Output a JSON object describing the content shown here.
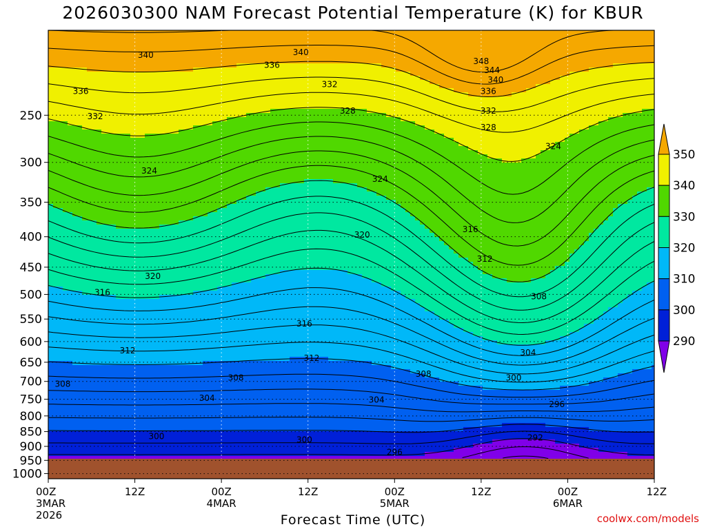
{
  "chart_data": {
    "type": "contour",
    "title": "2026030300 NAM Forecast Potential Temperature (K) for KBUR",
    "xlabel": "Forecast Time (UTC)",
    "ylabel": "",
    "x_ticks": [
      {
        "label": "00Z",
        "sub": "3MAR",
        "sub2": "2026",
        "hour": 0
      },
      {
        "label": "12Z",
        "sub": "",
        "sub2": "",
        "hour": 12
      },
      {
        "label": "00Z",
        "sub": "4MAR",
        "sub2": "",
        "hour": 24
      },
      {
        "label": "12Z",
        "sub": "",
        "sub2": "",
        "hour": 36
      },
      {
        "label": "00Z",
        "sub": "5MAR",
        "sub2": "",
        "hour": 48
      },
      {
        "label": "12Z",
        "sub": "",
        "sub2": "",
        "hour": 60
      },
      {
        "label": "00Z",
        "sub": "6MAR",
        "sub2": "",
        "hour": 72
      },
      {
        "label": "12Z",
        "sub": "",
        "sub2": "",
        "hour": 84
      }
    ],
    "xlim": [
      0,
      84
    ],
    "y_ticks": [
      250,
      300,
      350,
      400,
      450,
      500,
      550,
      600,
      650,
      700,
      750,
      800,
      850,
      900,
      950,
      1000
    ],
    "ylim": [
      1020,
      180
    ],
    "y_scale": "log",
    "grid": true,
    "colorbar": {
      "labels": [
        350,
        340,
        330,
        320,
        310,
        300,
        290
      ],
      "colors": [
        "#f5a800",
        "#f0f000",
        "#50d800",
        "#00e8a0",
        "#00b8f8",
        "#0060f0",
        "#0020d8",
        "#8000e8"
      ]
    },
    "fill_bands": [
      {
        "theta": 290,
        "color": "#8000e8"
      },
      {
        "theta": 296,
        "color": "#0020d8"
      },
      {
        "theta": 300,
        "color": "#0060f0"
      },
      {
        "theta": 310,
        "color": "#00b8f8"
      },
      {
        "theta": 320,
        "color": "#00e8a0"
      },
      {
        "theta": 330,
        "color": "#50d800"
      },
      {
        "theta": 340,
        "color": "#f0f000"
      },
      {
        "theta": 346,
        "color": "#f5a800"
      }
    ],
    "contour_labels": [
      {
        "text": "340",
        "hour": 13.5,
        "p": 198
      },
      {
        "text": "340",
        "hour": 35,
        "p": 196
      },
      {
        "text": "348",
        "hour": 60,
        "p": 203
      },
      {
        "text": "344",
        "hour": 61.5,
        "p": 210
      },
      {
        "text": "340",
        "hour": 62,
        "p": 218
      },
      {
        "text": "336",
        "hour": 4.5,
        "p": 228
      },
      {
        "text": "336",
        "hour": 31,
        "p": 206
      },
      {
        "text": "336",
        "hour": 61,
        "p": 228
      },
      {
        "text": "332",
        "hour": 6.5,
        "p": 251
      },
      {
        "text": "332",
        "hour": 39,
        "p": 222
      },
      {
        "text": "332",
        "hour": 61,
        "p": 246
      },
      {
        "text": "328",
        "hour": 41.5,
        "p": 246
      },
      {
        "text": "328",
        "hour": 61,
        "p": 262
      },
      {
        "text": "324",
        "hour": 14,
        "p": 310
      },
      {
        "text": "324",
        "hour": 46,
        "p": 320
      },
      {
        "text": "324",
        "hour": 70,
        "p": 282
      },
      {
        "text": "320",
        "hour": 14.5,
        "p": 466
      },
      {
        "text": "320",
        "hour": 43.5,
        "p": 397
      },
      {
        "text": "316",
        "hour": 7.5,
        "p": 496
      },
      {
        "text": "316",
        "hour": 35.5,
        "p": 560
      },
      {
        "text": "316",
        "hour": 58.5,
        "p": 389
      },
      {
        "text": "312",
        "hour": 11,
        "p": 621
      },
      {
        "text": "312",
        "hour": 36.5,
        "p": 640
      },
      {
        "text": "312",
        "hour": 60.5,
        "p": 436
      },
      {
        "text": "308",
        "hour": 2,
        "p": 707
      },
      {
        "text": "308",
        "hour": 26,
        "p": 690
      },
      {
        "text": "308",
        "hour": 52,
        "p": 680
      },
      {
        "text": "308",
        "hour": 68,
        "p": 504
      },
      {
        "text": "304",
        "hour": 22,
        "p": 747
      },
      {
        "text": "304",
        "hour": 45.5,
        "p": 752
      },
      {
        "text": "304",
        "hour": 66.5,
        "p": 626
      },
      {
        "text": "300",
        "hour": 15,
        "p": 866
      },
      {
        "text": "300",
        "hour": 35.5,
        "p": 878
      },
      {
        "text": "300",
        "hour": 64.5,
        "p": 690
      },
      {
        "text": "296",
        "hour": 48,
        "p": 920
      },
      {
        "text": "296",
        "hour": 70.5,
        "p": 765
      },
      {
        "text": "292",
        "hour": 67.5,
        "p": 870
      }
    ]
  },
  "watermark": "coolwx.com/models"
}
